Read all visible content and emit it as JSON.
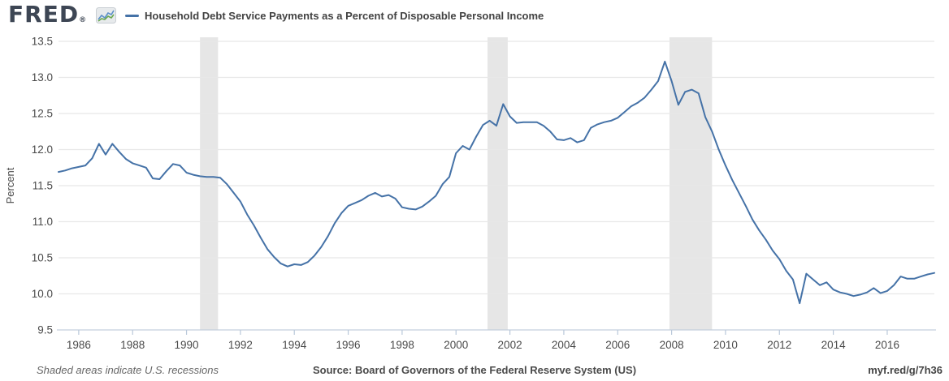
{
  "header": {
    "logo_text": "FRED",
    "logo_registered": "®",
    "series_title": "Household Debt Service Payments as a Percent of Disposable Personal Income"
  },
  "footer": {
    "note": "Shaded areas indicate U.S. recessions",
    "source": "Source: Board of Governors of the Federal Reserve System (US)",
    "link": "myf.red/g/7h36"
  },
  "colors": {
    "line": "#4572a7",
    "recession_band": "#e6e6e6",
    "gridline": "#e8e8e8",
    "axis_line": "#c3cfdd",
    "tick_mark": "#b9c8da",
    "tick_label": "#4a4a4a",
    "axis_title": "#4a4a4a",
    "title_text": "#424242",
    "logo_color": "#3d4654",
    "icon_line_blue": "#5b8fc9",
    "icon_line_green": "#6aa84f",
    "icon_bg": "#e7eaec"
  },
  "chart_data": {
    "type": "line",
    "title": "Household Debt Service Payments as a Percent of Disposable Personal Income",
    "xlabel": "",
    "ylabel": "Percent",
    "ylim": [
      9.5,
      13.5
    ],
    "xlim": [
      1985.25,
      2017.75
    ],
    "grid": "horizontal",
    "legend_position": "top-left",
    "y_ticks": [
      9.5,
      10.0,
      10.5,
      11.0,
      11.5,
      12.0,
      12.5,
      13.0,
      13.5
    ],
    "y_tick_labels": [
      "9.5",
      "10.0",
      "10.5",
      "11.0",
      "11.5",
      "12.0",
      "12.5",
      "13.0",
      "13.5"
    ],
    "x_ticks": [
      1986,
      1988,
      1990,
      1992,
      1994,
      1996,
      1998,
      2000,
      2002,
      2004,
      2006,
      2008,
      2010,
      2012,
      2014,
      2016
    ],
    "x_tick_labels": [
      "1986",
      "1988",
      "1990",
      "1992",
      "1994",
      "1996",
      "1998",
      "2000",
      "2002",
      "2004",
      "2006",
      "2008",
      "2010",
      "2012",
      "2014",
      "2016"
    ],
    "recession_bands": [
      [
        1990.5,
        1991.17
      ],
      [
        2001.17,
        2001.92
      ],
      [
        2007.92,
        2009.5
      ]
    ],
    "x_start": 1985.25,
    "x_step": 0.25,
    "series": [
      {
        "name": "Household Debt Service Payments as a Percent of Disposable Personal Income",
        "frequency": "quarterly",
        "values": [
          11.69,
          11.71,
          11.74,
          11.76,
          11.78,
          11.88,
          12.08,
          11.93,
          12.08,
          11.97,
          11.87,
          11.81,
          11.78,
          11.75,
          11.6,
          11.59,
          11.7,
          11.8,
          11.78,
          11.68,
          11.65,
          11.63,
          11.62,
          11.62,
          11.61,
          11.52,
          11.4,
          11.28,
          11.1,
          10.95,
          10.78,
          10.62,
          10.51,
          10.42,
          10.38,
          10.41,
          10.4,
          10.44,
          10.53,
          10.65,
          10.8,
          10.98,
          11.12,
          11.22,
          11.26,
          11.3,
          11.36,
          11.4,
          11.35,
          11.37,
          11.32,
          11.2,
          11.18,
          11.17,
          11.21,
          11.28,
          11.36,
          11.52,
          11.62,
          11.95,
          12.05,
          12.0,
          12.18,
          12.34,
          12.4,
          12.33,
          12.63,
          12.46,
          12.37,
          12.38,
          12.38,
          12.38,
          12.33,
          12.25,
          12.14,
          12.13,
          12.16,
          12.1,
          12.13,
          12.3,
          12.35,
          12.38,
          12.4,
          12.44,
          12.52,
          12.6,
          12.65,
          12.72,
          12.83,
          12.95,
          13.22,
          12.95,
          12.62,
          12.8,
          12.83,
          12.78,
          12.45,
          12.25,
          12.0,
          11.78,
          11.58,
          11.4,
          11.22,
          11.03,
          10.88,
          10.75,
          10.6,
          10.48,
          10.32,
          10.2,
          9.87,
          10.28,
          10.2,
          10.12,
          10.16,
          10.06,
          10.02,
          10.0,
          9.97,
          9.99,
          10.02,
          10.08,
          10.01,
          10.04,
          10.12,
          10.24,
          10.21,
          10.21,
          10.24,
          10.27,
          10.29
        ]
      }
    ]
  }
}
